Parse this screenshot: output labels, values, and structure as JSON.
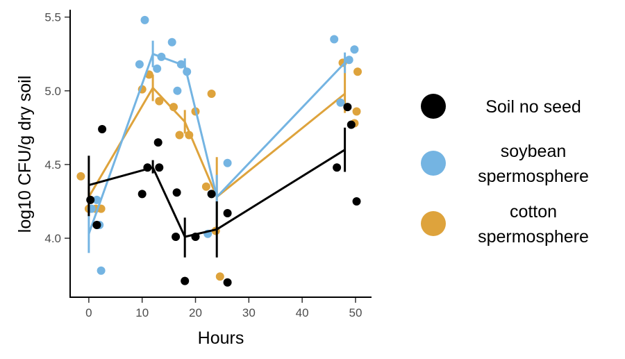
{
  "chart_data": {
    "type": "scatter",
    "title": "",
    "xlabel": "Hours",
    "ylabel": "log10 CFU/g dry soil",
    "xlim": [
      -3.5,
      53
    ],
    "ylim": [
      3.6,
      5.55
    ],
    "xticks": [
      0,
      10,
      20,
      30,
      40,
      50
    ],
    "yticks": [
      4.0,
      4.5,
      5.0,
      5.5
    ],
    "ytick_labels": [
      "4.0",
      "4.5",
      "5.0",
      "5.5"
    ],
    "grid": false,
    "legend_position": "right",
    "series": [
      {
        "name": "Soil no seed",
        "color": "#000000",
        "points": [
          {
            "x": 0.3,
            "y": 4.26
          },
          {
            "x": 1.5,
            "y": 4.09
          },
          {
            "x": 2.5,
            "y": 4.74
          },
          {
            "x": 10,
            "y": 4.3
          },
          {
            "x": 11,
            "y": 4.48
          },
          {
            "x": 13,
            "y": 4.65
          },
          {
            "x": 13.2,
            "y": 4.48
          },
          {
            "x": 16.3,
            "y": 4.01
          },
          {
            "x": 16.5,
            "y": 4.31
          },
          {
            "x": 18,
            "y": 3.71
          },
          {
            "x": 20,
            "y": 4.01
          },
          {
            "x": 23,
            "y": 4.3
          },
          {
            "x": 26,
            "y": 3.7
          },
          {
            "x": 26,
            "y": 4.17
          },
          {
            "x": 46.5,
            "y": 4.48
          },
          {
            "x": 48.5,
            "y": 4.89
          },
          {
            "x": 49.2,
            "y": 4.77
          },
          {
            "x": 50.2,
            "y": 4.25
          }
        ],
        "means": [
          {
            "x": 0,
            "y": 4.36,
            "low": 4.15,
            "high": 4.56
          },
          {
            "x": 12,
            "y": 4.48,
            "low": 4.44,
            "high": 4.53
          },
          {
            "x": 18,
            "y": 4.01,
            "low": 3.87,
            "high": 4.14
          },
          {
            "x": 24,
            "y": 4.06,
            "low": 3.87,
            "high": 4.25
          },
          {
            "x": 48,
            "y": 4.6,
            "low": 4.45,
            "high": 4.75
          }
        ]
      },
      {
        "name": "soybean spermosphere",
        "color": "#74b4e2",
        "points": [
          {
            "x": 0.5,
            "y": 4.2
          },
          {
            "x": 1.5,
            "y": 4.26
          },
          {
            "x": 2,
            "y": 4.09
          },
          {
            "x": 2.3,
            "y": 3.78
          },
          {
            "x": 9.5,
            "y": 5.18
          },
          {
            "x": 10.5,
            "y": 5.48
          },
          {
            "x": 12.8,
            "y": 5.15
          },
          {
            "x": 13.6,
            "y": 5.23
          },
          {
            "x": 15.6,
            "y": 5.33
          },
          {
            "x": 16.6,
            "y": 5.0
          },
          {
            "x": 17.3,
            "y": 5.18
          },
          {
            "x": 18.4,
            "y": 5.13
          },
          {
            "x": 22.3,
            "y": 4.03
          },
          {
            "x": 23,
            "y": 4.3
          },
          {
            "x": 26,
            "y": 4.51
          },
          {
            "x": 46,
            "y": 5.35
          },
          {
            "x": 47.2,
            "y": 4.92
          },
          {
            "x": 48.8,
            "y": 5.21
          },
          {
            "x": 49.8,
            "y": 5.28
          }
        ],
        "means": [
          {
            "x": 0,
            "y": 4.03,
            "low": 3.9,
            "high": 4.17
          },
          {
            "x": 12,
            "y": 5.25,
            "low": 5.16,
            "high": 5.34
          },
          {
            "x": 18,
            "y": 5.17,
            "low": 5.11,
            "high": 5.22
          },
          {
            "x": 24,
            "y": 4.28,
            "low": 4.12,
            "high": 4.43
          },
          {
            "x": 48,
            "y": 5.19,
            "low": 5.12,
            "high": 5.26
          }
        ]
      },
      {
        "name": "cotton spermosphere",
        "color": "#dea33c",
        "points": [
          {
            "x": -1.5,
            "y": 4.42
          },
          {
            "x": 0,
            "y": 4.2
          },
          {
            "x": 1.3,
            "y": 4.2
          },
          {
            "x": 2.3,
            "y": 4.2
          },
          {
            "x": 10,
            "y": 5.01
          },
          {
            "x": 11.3,
            "y": 5.11
          },
          {
            "x": 13.2,
            "y": 4.93
          },
          {
            "x": 15.9,
            "y": 4.89
          },
          {
            "x": 17,
            "y": 4.7
          },
          {
            "x": 18.8,
            "y": 4.7
          },
          {
            "x": 20,
            "y": 4.86
          },
          {
            "x": 22,
            "y": 4.35
          },
          {
            "x": 23,
            "y": 4.98
          },
          {
            "x": 23.8,
            "y": 4.05
          },
          {
            "x": 24.6,
            "y": 3.74
          },
          {
            "x": 47.6,
            "y": 5.19
          },
          {
            "x": 49.8,
            "y": 4.78
          },
          {
            "x": 50.2,
            "y": 4.86
          },
          {
            "x": 50.4,
            "y": 5.13
          }
        ],
        "means": [
          {
            "x": 0,
            "y": 4.28,
            "low": 4.21,
            "high": 4.35
          },
          {
            "x": 12,
            "y": 5.02,
            "low": 4.93,
            "high": 5.11
          },
          {
            "x": 18,
            "y": 4.79,
            "low": 4.71,
            "high": 4.87
          },
          {
            "x": 24,
            "y": 4.28,
            "low": 4.05,
            "high": 4.55
          },
          {
            "x": 48,
            "y": 4.98,
            "low": 4.85,
            "high": 5.18
          }
        ]
      }
    ]
  }
}
